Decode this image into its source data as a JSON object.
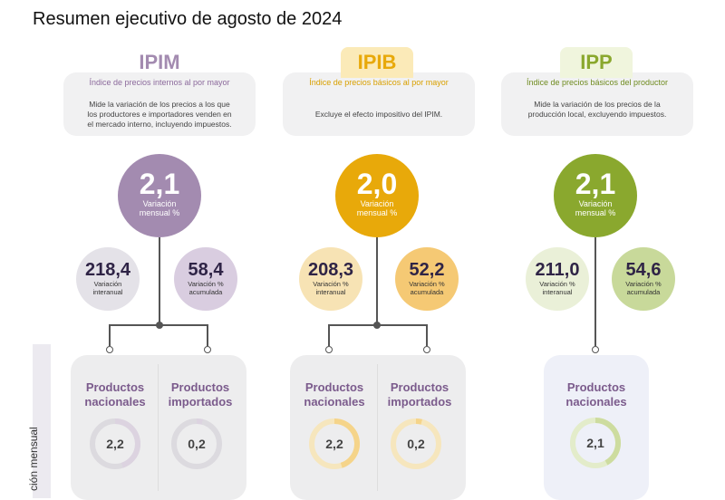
{
  "title": "Resumen ejecutivo de agosto de 2024",
  "side_label": "ción mensual",
  "colors": {
    "ipim": "#a38bb0",
    "ipim_light": "#dcd3e0",
    "ipib": "#e8a90a",
    "ipib_light": "#f5d48a",
    "ipp": "#8aa82e",
    "ipp_light": "#cddc9f"
  },
  "sections": [
    {
      "key": "ipim",
      "acronym": "IPIM",
      "subtitle": "Índice de precios internos al por mayor",
      "description": [
        "Mide la variación de los precios a los que",
        "los productores e importadores venden en",
        "el mercado interno, incluyendo impuestos."
      ],
      "monthly_value": "2,1",
      "monthly_label": [
        "Variación",
        "mensual %"
      ],
      "interannual_value": "218,4",
      "interannual_label": [
        "Variación",
        "interanual"
      ],
      "accumulated_value": "58,4",
      "accumulated_label": [
        "Variación %",
        "acumulada"
      ],
      "products": [
        {
          "name": [
            "Productos",
            "nacionales"
          ],
          "value": "2,2",
          "progress": 0.45
        },
        {
          "name": [
            "Productos",
            "importados"
          ],
          "value": "0,2",
          "progress": 0.04
        }
      ]
    },
    {
      "key": "ipib",
      "acronym": "IPIB",
      "subtitle": "Índice de precios básicos al por mayor",
      "description": [
        "Excluye el efecto impositivo del IPIM."
      ],
      "monthly_value": "2,0",
      "monthly_label": [
        "Variación",
        "mensual %"
      ],
      "interannual_value": "208,3",
      "interannual_label": [
        "Variación %",
        "interanual"
      ],
      "accumulated_value": "52,2",
      "accumulated_label": [
        "Variación %",
        "acumulada"
      ],
      "products": [
        {
          "name": [
            "Productos",
            "nacionales"
          ],
          "value": "2,2",
          "progress": 0.45
        },
        {
          "name": [
            "Productos",
            "importados"
          ],
          "value": "0,2",
          "progress": 0.04
        }
      ]
    },
    {
      "key": "ipp",
      "acronym": "IPP",
      "subtitle": "Índice de precios básicos del productor",
      "description": [
        "Mide la variación de los precios de la",
        "producción local, excluyendo impuestos."
      ],
      "monthly_value": "2,1",
      "monthly_label": [
        "Variación",
        "mensual %"
      ],
      "interannual_value": "211,0",
      "interannual_label": [
        "Variación %",
        "interanual"
      ],
      "accumulated_value": "54,6",
      "accumulated_label": [
        "Variación %",
        "acumulada"
      ],
      "products": [
        {
          "name": [
            "Productos",
            "nacionales"
          ],
          "value": "2,1",
          "progress": 0.42
        }
      ]
    }
  ]
}
